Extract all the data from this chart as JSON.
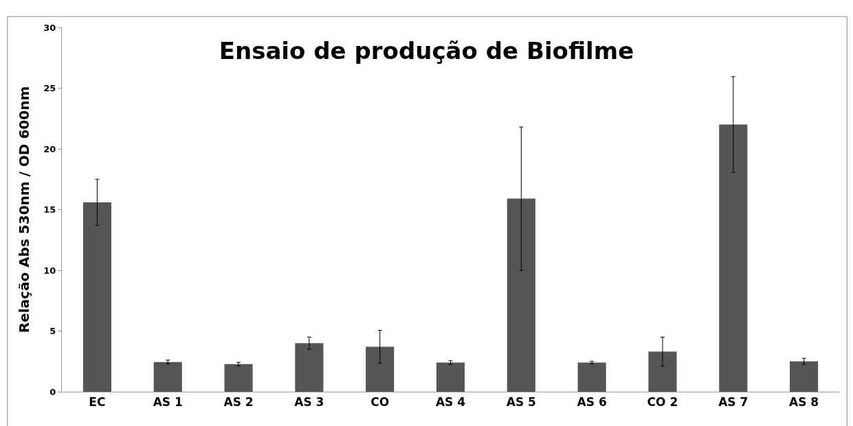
{
  "chart_data": {
    "type": "bar",
    "title": "Ensaio de produção de Biofilme",
    "ylabel": "Relação Abs 530nm / OD 600nm",
    "categories": [
      "EC",
      "AS 1",
      "AS 2",
      "AS 3",
      "CO",
      "AS 4",
      "AS 5",
      "AS 6",
      "CO 2",
      "AS 7",
      "AS 8"
    ],
    "values": [
      15.6,
      2.45,
      2.27,
      4.0,
      3.7,
      2.4,
      15.9,
      2.4,
      3.3,
      22.0,
      2.5
    ],
    "errors": [
      1.9,
      0.15,
      0.15,
      0.5,
      1.35,
      0.15,
      5.9,
      0.1,
      1.2,
      3.95,
      0.25
    ],
    "color": "#555555",
    "ylim": [
      0,
      30
    ],
    "yticks": [
      0,
      5,
      10,
      15,
      20,
      25,
      30
    ],
    "grid": false
  }
}
